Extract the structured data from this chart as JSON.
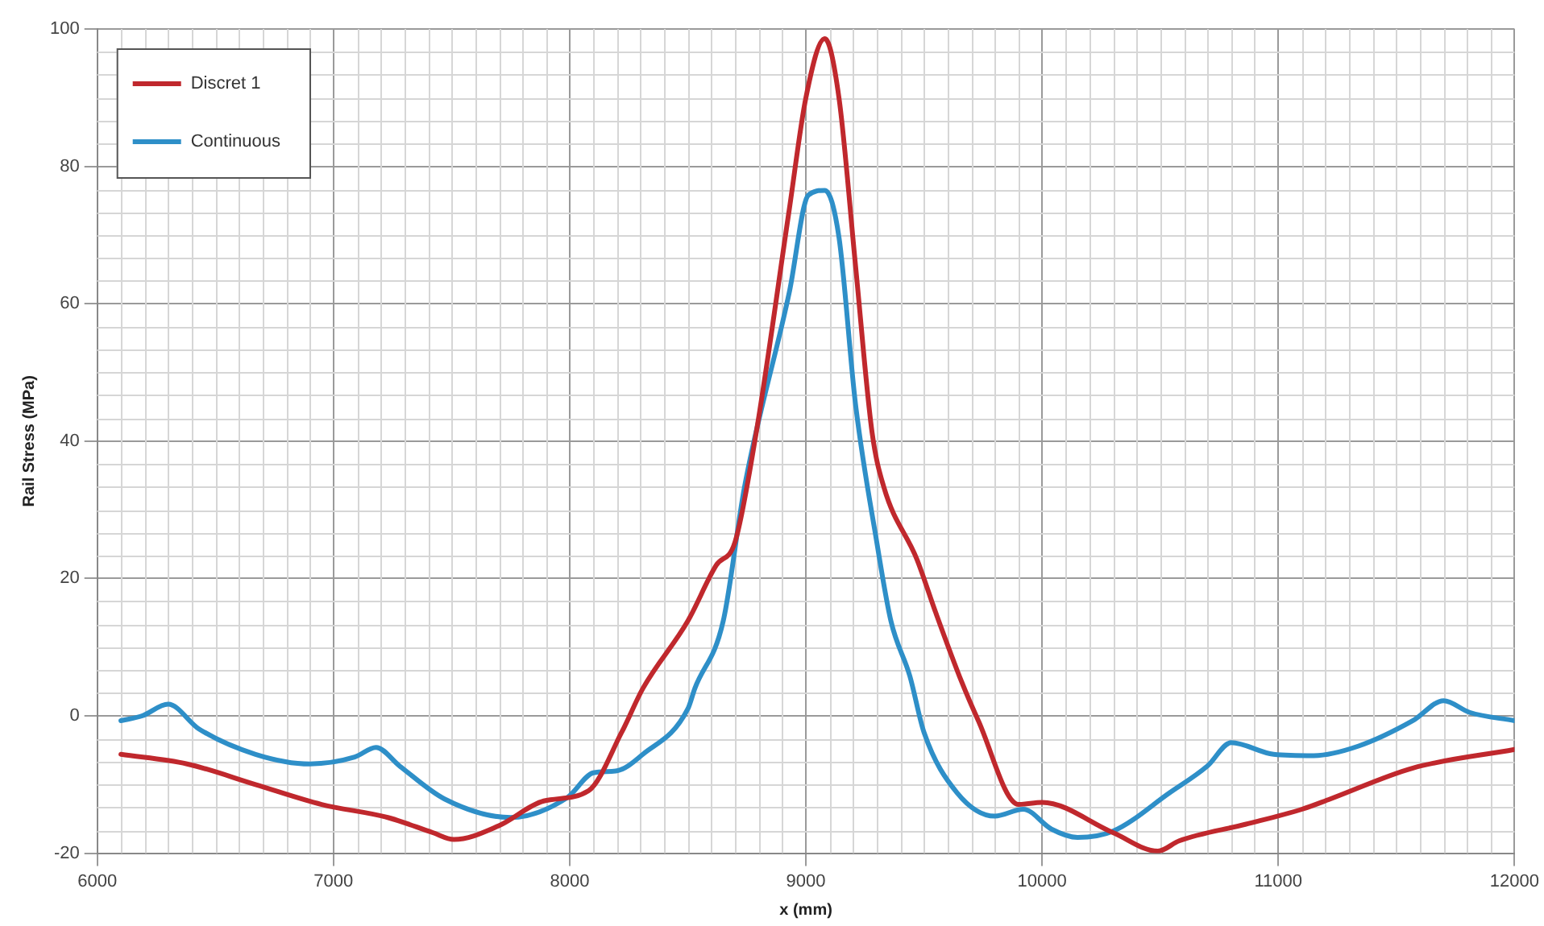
{
  "chart_data": {
    "type": "line",
    "xlabel": "x (mm)",
    "ylabel": "Rail Stress (MPa)",
    "xlim": [
      6000,
      12000
    ],
    "xticks": [
      6000,
      7000,
      8000,
      9000,
      10000,
      11000,
      12000
    ],
    "ylim": [
      -20,
      100
    ],
    "yticks": [
      -20,
      0,
      20,
      40,
      60,
      80,
      100
    ],
    "grid": true,
    "legend": "top left",
    "marker": "none",
    "line_style": "solid",
    "series": [
      {
        "name": "Discret 1",
        "color": "#c0282d",
        "x": [
          6100,
          6380,
          6670,
          6950,
          7230,
          7420,
          7510,
          7700,
          7890,
          8080,
          8220,
          8310,
          8500,
          8620,
          8700,
          8790,
          8930,
          9000,
          9080,
          9140,
          9210,
          9280,
          9330,
          9470,
          9550,
          9660,
          9730,
          9900,
          10000,
          10300,
          10490,
          10580,
          10860,
          11100,
          11220,
          11570,
          12000
        ],
        "values": [
          -5.6,
          -7,
          -10,
          -12.9,
          -14.8,
          -17,
          -18,
          -16,
          -12.4,
          -10.9,
          -2.4,
          4,
          13.8,
          21.9,
          25.3,
          41.3,
          73.8,
          90,
          98.6,
          90,
          65.6,
          41.3,
          33.3,
          22.8,
          15,
          4.9,
          -0.7,
          -12.9,
          -12.6,
          -17,
          -19.7,
          -18.2,
          -15.8,
          -13.6,
          -12.1,
          -7.6,
          -4.9
        ]
      },
      {
        "name": "Continuous",
        "color": "#2e8fc8",
        "x": [
          6100,
          6190,
          6300,
          6430,
          6670,
          6900,
          7090,
          7180,
          7280,
          7470,
          7750,
          7990,
          8100,
          8200,
          8310,
          8500,
          8530,
          8650,
          8740,
          8930,
          9010,
          9080,
          9140,
          9210,
          9300,
          9360,
          9440,
          9500,
          9640,
          9800,
          9920,
          10040,
          10150,
          10300,
          10540,
          10700,
          10800,
          10980,
          11150,
          11340,
          11570,
          11700,
          11810,
          12000
        ],
        "values": [
          -0.7,
          0,
          1.7,
          -1.9,
          -5.6,
          -7,
          -6,
          -4.6,
          -7.3,
          -12.1,
          -14.8,
          -11.9,
          -8.3,
          -8,
          -5.6,
          1,
          4,
          13.8,
          33.3,
          61.7,
          75.8,
          76.5,
          69.7,
          45.4,
          25.3,
          13.8,
          5.8,
          -2.4,
          -11.2,
          -14.6,
          -13.6,
          -16.5,
          -17.7,
          -16.8,
          -11.2,
          -7.3,
          -3.9,
          -5.6,
          -5.8,
          -4.4,
          -0.7,
          2.2,
          0.5,
          -0.7
        ]
      }
    ]
  }
}
